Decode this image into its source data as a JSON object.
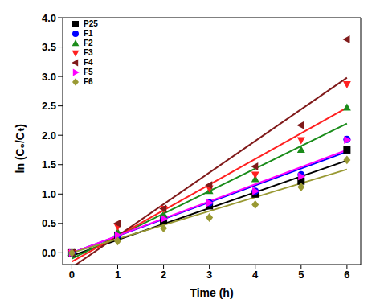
{
  "chart_data": {
    "type": "scatter",
    "x_label": "Time (h)",
    "y_label": "ln (C₀/Cₜ)",
    "x": [
      0,
      1,
      2,
      3,
      4,
      5,
      6
    ],
    "xlim": [
      -0.2,
      6.3
    ],
    "xticks": [
      0,
      1,
      2,
      3,
      4,
      5,
      6
    ],
    "ylim": [
      -0.2,
      4.0
    ],
    "yticks": [
      {
        "value": 0,
        "label": "0.0"
      },
      {
        "value": 0.5,
        "label": "0.5"
      },
      {
        "value": 1,
        "label": "1.0"
      },
      {
        "value": 1.5,
        "label": "1.5"
      },
      {
        "value": 2,
        "label": "2.0"
      },
      {
        "value": 2.5,
        "label": "2.5"
      },
      {
        "value": 3,
        "label": "3.0"
      },
      {
        "value": 3.5,
        "label": "3.5"
      },
      {
        "value": 4,
        "label": "4.0"
      }
    ],
    "grid": false,
    "legend": "upper left",
    "series": [
      {
        "name": "P25",
        "color": "#000000",
        "marker": "square",
        "values": [
          0,
          0.3,
          0.55,
          0.8,
          1.0,
          1.22,
          1.75
        ],
        "fit": {
          "x": [
            0,
            6
          ],
          "values": [
            -0.05,
            1.57
          ]
        }
      },
      {
        "name": "F1",
        "color": "#0000ff",
        "marker": "circle",
        "values": [
          0,
          0.3,
          0.6,
          0.85,
          1.05,
          1.33,
          1.93
        ],
        "fit": {
          "x": [
            0,
            6
          ],
          "values": [
            0.0,
            1.72
          ]
        }
      },
      {
        "name": "F2",
        "color": "#1a8c1a",
        "marker": "triangle",
        "values": [
          0,
          0.35,
          0.65,
          1.05,
          1.25,
          1.75,
          2.47
        ],
        "fit": {
          "x": [
            0,
            6
          ],
          "values": [
            -0.1,
            2.2
          ]
        }
      },
      {
        "name": "F3",
        "color": "#ff2020",
        "marker": "triangle-down",
        "values": [
          0,
          0.45,
          0.75,
          1.1,
          1.33,
          1.92,
          2.87
        ],
        "fit": {
          "x": [
            0,
            6
          ],
          "values": [
            -0.15,
            2.47
          ]
        }
      },
      {
        "name": "F4",
        "color": "#801a1a",
        "marker": "triangle-left",
        "values": [
          0,
          0.5,
          0.75,
          1.15,
          1.47,
          2.17,
          3.63
        ],
        "fit": {
          "x": [
            0,
            6
          ],
          "values": [
            -0.25,
            2.98
          ]
        }
      },
      {
        "name": "F5",
        "color": "#ff00ff",
        "marker": "triangle-right",
        "values": [
          0,
          0.3,
          0.58,
          0.85,
          1.05,
          1.3,
          1.92
        ],
        "fit": {
          "x": [
            0,
            6
          ],
          "values": [
            0.0,
            1.75
          ]
        }
      },
      {
        "name": "F6",
        "color": "#999933",
        "marker": "diamond",
        "values": [
          0,
          0.2,
          0.42,
          0.6,
          0.82,
          1.12,
          1.58
        ],
        "fit": {
          "x": [
            0,
            6
          ],
          "values": [
            0.0,
            1.42
          ]
        }
      }
    ]
  }
}
